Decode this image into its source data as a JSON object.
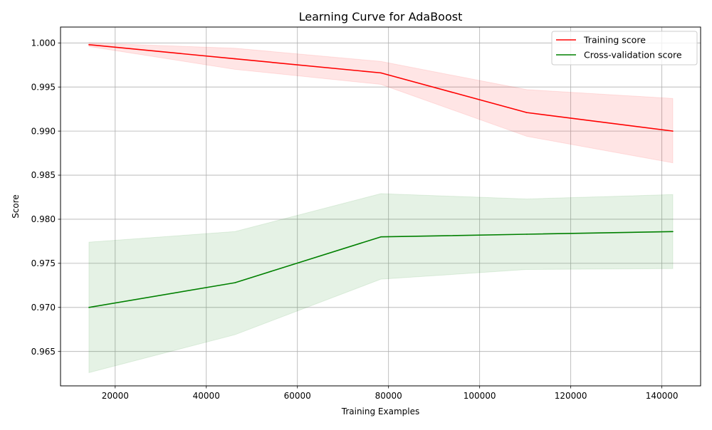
{
  "chart_data": {
    "type": "line",
    "title": "Learning Curve for AdaBoost",
    "xlabel": "Training Examples",
    "ylabel": "Score",
    "xlim": [
      8000,
      148500
    ],
    "ylim": [
      0.9611,
      1.0018
    ],
    "x": [
      14240,
      46280,
      78320,
      110360,
      142400
    ],
    "xticks": [
      {
        "value": 20000,
        "label": "20000"
      },
      {
        "value": 40000,
        "label": "40000"
      },
      {
        "value": 60000,
        "label": "60000"
      },
      {
        "value": 80000,
        "label": "80000"
      },
      {
        "value": 100000,
        "label": "100000"
      },
      {
        "value": 120000,
        "label": "120000"
      },
      {
        "value": 140000,
        "label": "140000"
      }
    ],
    "yticks": [
      {
        "value": 0.965,
        "label": "0.965"
      },
      {
        "value": 0.97,
        "label": "0.970"
      },
      {
        "value": 0.975,
        "label": "0.975"
      },
      {
        "value": 0.98,
        "label": "0.980"
      },
      {
        "value": 0.985,
        "label": "0.985"
      },
      {
        "value": 0.99,
        "label": "0.990"
      },
      {
        "value": 0.995,
        "label": "0.995"
      },
      {
        "value": 1.0,
        "label": "1.000"
      }
    ],
    "grid": true,
    "legend_position": "top-right",
    "series": [
      {
        "name": "Training score",
        "color": "#ff0000",
        "band_color": "#ff0000",
        "band_opacity": 0.1,
        "values": [
          0.9998,
          0.9982,
          0.9966,
          0.9921,
          0.99
        ],
        "lower": [
          0.9996,
          0.997,
          0.9953,
          0.9894,
          0.9864
        ],
        "upper": [
          1.0,
          0.9994,
          0.9979,
          0.9947,
          0.9937
        ]
      },
      {
        "name": "Cross-validation score",
        "color": "#008000",
        "band_color": "#008000",
        "band_opacity": 0.1,
        "values": [
          0.97,
          0.9728,
          0.978,
          0.9783,
          0.9786
        ],
        "lower": [
          0.9626,
          0.9669,
          0.9732,
          0.9743,
          0.9744
        ],
        "upper": [
          0.9774,
          0.9786,
          0.9829,
          0.9823,
          0.9828
        ]
      }
    ]
  }
}
